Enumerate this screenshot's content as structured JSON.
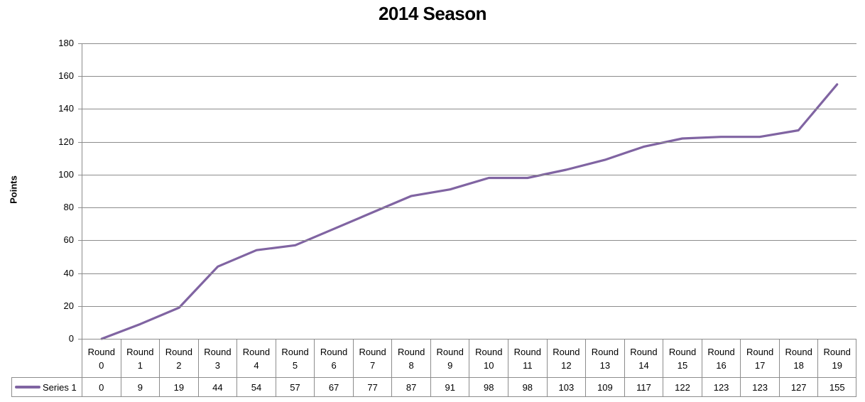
{
  "chart_data": {
    "type": "line",
    "title": "2014 Season",
    "xlabel": "",
    "ylabel": "Points",
    "ylim": [
      0,
      180
    ],
    "yticks": [
      0,
      20,
      40,
      60,
      80,
      100,
      120,
      140,
      160,
      180
    ],
    "grid": true,
    "legend_position": "data-table-left",
    "categories": [
      "Round 0",
      "Round 1",
      "Round 2",
      "Round 3",
      "Round 4",
      "Round 5",
      "Round 6",
      "Round 7",
      "Round 8",
      "Round 9",
      "Round 10",
      "Round 11",
      "Round 12",
      "Round 13",
      "Round 14",
      "Round 15",
      "Round 16",
      "Round 17",
      "Round 18",
      "Round 19"
    ],
    "series": [
      {
        "name": "Series 1",
        "color": "#8064A2",
        "values": [
          0,
          9,
          19,
          44,
          54,
          57,
          67,
          77,
          87,
          91,
          98,
          98,
          103,
          109,
          117,
          122,
          123,
          123,
          127,
          155
        ]
      }
    ]
  },
  "colors": {
    "accent_line": "#8064A2",
    "gridline": "#8C8C8C",
    "table_border": "#8C8C8C",
    "text": "#000000",
    "background": "#FFFFFF"
  }
}
